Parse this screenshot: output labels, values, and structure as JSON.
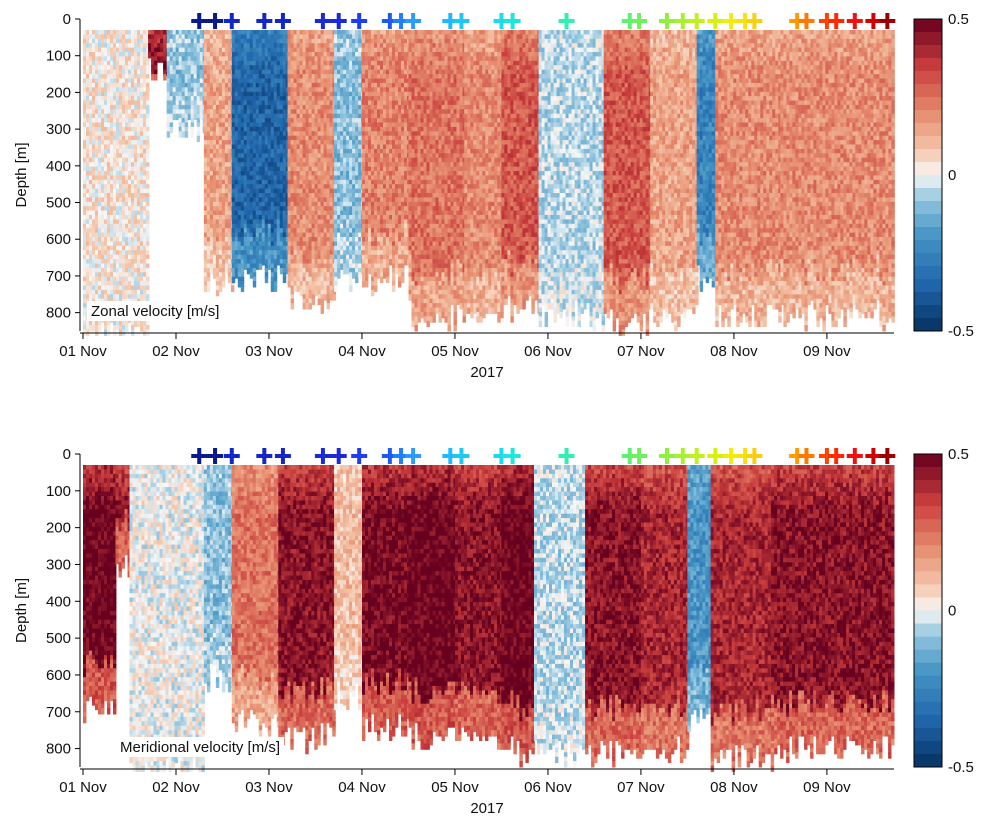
{
  "chart_data": [
    {
      "type": "heatmap",
      "label": "Zonal velocity [m/s]",
      "ylabel": "Depth [m]",
      "xlabel": "2017",
      "x_ticks": [
        "01 Nov",
        "02 Nov",
        "03 Nov",
        "04 Nov",
        "05 Nov",
        "06 Nov",
        "07 Nov",
        "08 Nov",
        "09 Nov"
      ],
      "y_ticks": [
        "0",
        "100",
        "200",
        "300",
        "400",
        "500",
        "600",
        "700",
        "800"
      ],
      "ylim": [
        850,
        0
      ],
      "xlim_days": [
        1.0,
        9.7
      ],
      "colorbar": {
        "min": -0.5,
        "max": 0.5,
        "ticks": [
          "0.5",
          "0",
          "-0.5"
        ]
      },
      "segments": [
        {
          "t0": 1.0,
          "t1": 1.7,
          "v": 0.03,
          "max_depth": 850
        },
        {
          "t0": 1.7,
          "t1": 1.9,
          "v": 0.5,
          "max_depth": 130
        },
        {
          "t0": 1.9,
          "t1": 2.3,
          "v": -0.1,
          "max_depth": 300
        },
        {
          "t0": 2.3,
          "t1": 2.6,
          "v": 0.15,
          "max_depth": 700
        },
        {
          "t0": 2.6,
          "t1": 3.2,
          "v": -0.35,
          "max_depth": 700
        },
        {
          "t0": 3.2,
          "t1": 3.7,
          "v": 0.2,
          "max_depth": 760
        },
        {
          "t0": 3.7,
          "t1": 4.0,
          "v": -0.1,
          "max_depth": 700
        },
        {
          "t0": 4.0,
          "t1": 4.5,
          "v": 0.22,
          "max_depth": 700
        },
        {
          "t0": 4.5,
          "t1": 5.1,
          "v": 0.25,
          "max_depth": 800
        },
        {
          "t0": 5.1,
          "t1": 5.5,
          "v": 0.2,
          "max_depth": 800
        },
        {
          "t0": 5.5,
          "t1": 5.9,
          "v": 0.3,
          "max_depth": 780
        },
        {
          "t0": 5.9,
          "t1": 6.6,
          "v": -0.05,
          "max_depth": 800
        },
        {
          "t0": 6.6,
          "t1": 7.1,
          "v": 0.3,
          "max_depth": 820
        },
        {
          "t0": 7.1,
          "t1": 7.6,
          "v": 0.15,
          "max_depth": 800
        },
        {
          "t0": 7.6,
          "t1": 7.8,
          "v": -0.25,
          "max_depth": 700
        },
        {
          "t0": 7.8,
          "t1": 8.5,
          "v": 0.2,
          "max_depth": 800
        },
        {
          "t0": 8.5,
          "t1": 9.7,
          "v": 0.2,
          "max_depth": 800
        }
      ]
    },
    {
      "type": "heatmap",
      "label": "Meridional velocity [m/s]",
      "ylabel": "Depth [m]",
      "xlabel": "2017",
      "x_ticks": [
        "01 Nov",
        "02 Nov",
        "03 Nov",
        "04 Nov",
        "05 Nov",
        "06 Nov",
        "07 Nov",
        "08 Nov",
        "09 Nov"
      ],
      "y_ticks": [
        "0",
        "100",
        "200",
        "300",
        "400",
        "500",
        "600",
        "700",
        "800"
      ],
      "ylim": [
        850,
        0
      ],
      "xlim_days": [
        1.0,
        9.7
      ],
      "colorbar": {
        "min": -0.5,
        "max": 0.5,
        "ticks": [
          "0.5",
          "0",
          "-0.5"
        ]
      },
      "segments": [
        {
          "t0": 1.0,
          "t1": 1.35,
          "v": 0.5,
          "max_depth": 690
        },
        {
          "t0": 1.35,
          "t1": 1.5,
          "v": 0.45,
          "max_depth": 300
        },
        {
          "t0": 1.5,
          "t1": 2.3,
          "v": 0.0,
          "max_depth": 850
        },
        {
          "t0": 2.3,
          "t1": 2.6,
          "v": -0.1,
          "max_depth": 600
        },
        {
          "t0": 2.6,
          "t1": 3.1,
          "v": 0.25,
          "max_depth": 720
        },
        {
          "t0": 3.1,
          "t1": 3.7,
          "v": 0.45,
          "max_depth": 760
        },
        {
          "t0": 3.7,
          "t1": 4.0,
          "v": 0.1,
          "max_depth": 650
        },
        {
          "t0": 4.0,
          "t1": 4.5,
          "v": 0.48,
          "max_depth": 740
        },
        {
          "t0": 4.5,
          "t1": 5.0,
          "v": 0.5,
          "max_depth": 760
        },
        {
          "t0": 5.0,
          "t1": 5.5,
          "v": 0.45,
          "max_depth": 750
        },
        {
          "t0": 5.5,
          "t1": 5.85,
          "v": 0.5,
          "max_depth": 800
        },
        {
          "t0": 5.85,
          "t1": 6.4,
          "v": -0.05,
          "max_depth": 800
        },
        {
          "t0": 6.4,
          "t1": 7.0,
          "v": 0.45,
          "max_depth": 800
        },
        {
          "t0": 7.0,
          "t1": 7.5,
          "v": 0.4,
          "max_depth": 800
        },
        {
          "t0": 7.5,
          "t1": 7.75,
          "v": -0.2,
          "max_depth": 700
        },
        {
          "t0": 7.75,
          "t1": 8.4,
          "v": 0.4,
          "max_depth": 820
        },
        {
          "t0": 8.4,
          "t1": 9.7,
          "v": 0.45,
          "max_depth": 790
        }
      ]
    }
  ],
  "markers": {
    "symbol": "+",
    "items": [
      {
        "t": 2.25,
        "color": "#0a1a8a"
      },
      {
        "t": 2.42,
        "color": "#0a1a8a"
      },
      {
        "t": 2.6,
        "color": "#1326c8"
      },
      {
        "t": 2.95,
        "color": "#1326c8"
      },
      {
        "t": 3.15,
        "color": "#1326c8"
      },
      {
        "t": 3.58,
        "color": "#1a2ad8"
      },
      {
        "t": 3.75,
        "color": "#1a2ad8"
      },
      {
        "t": 3.97,
        "color": "#1f3ef0"
      },
      {
        "t": 4.3,
        "color": "#1f5af0"
      },
      {
        "t": 4.42,
        "color": "#2080ff"
      },
      {
        "t": 4.55,
        "color": "#2a9cff"
      },
      {
        "t": 4.95,
        "color": "#20b8ff"
      },
      {
        "t": 5.07,
        "color": "#20c8f0"
      },
      {
        "t": 5.5,
        "color": "#1cdcec"
      },
      {
        "t": 5.62,
        "color": "#1ce6de"
      },
      {
        "t": 6.2,
        "color": "#30f0b0"
      },
      {
        "t": 6.88,
        "color": "#60f070"
      },
      {
        "t": 6.98,
        "color": "#70f060"
      },
      {
        "t": 7.28,
        "color": "#90f040"
      },
      {
        "t": 7.45,
        "color": "#a8f030"
      },
      {
        "t": 7.6,
        "color": "#c0f020"
      },
      {
        "t": 7.8,
        "color": "#d8f010"
      },
      {
        "t": 7.97,
        "color": "#f0ec10"
      },
      {
        "t": 8.12,
        "color": "#f8e010"
      },
      {
        "t": 8.22,
        "color": "#f8d010"
      },
      {
        "t": 8.68,
        "color": "#ff9a00"
      },
      {
        "t": 8.78,
        "color": "#ff7800"
      },
      {
        "t": 9.0,
        "color": "#ff4400"
      },
      {
        "t": 9.1,
        "color": "#ff2a00"
      },
      {
        "t": 9.3,
        "color": "#f01010"
      },
      {
        "t": 9.5,
        "color": "#d00000"
      },
      {
        "t": 9.65,
        "color": "#9a0000"
      }
    ]
  }
}
